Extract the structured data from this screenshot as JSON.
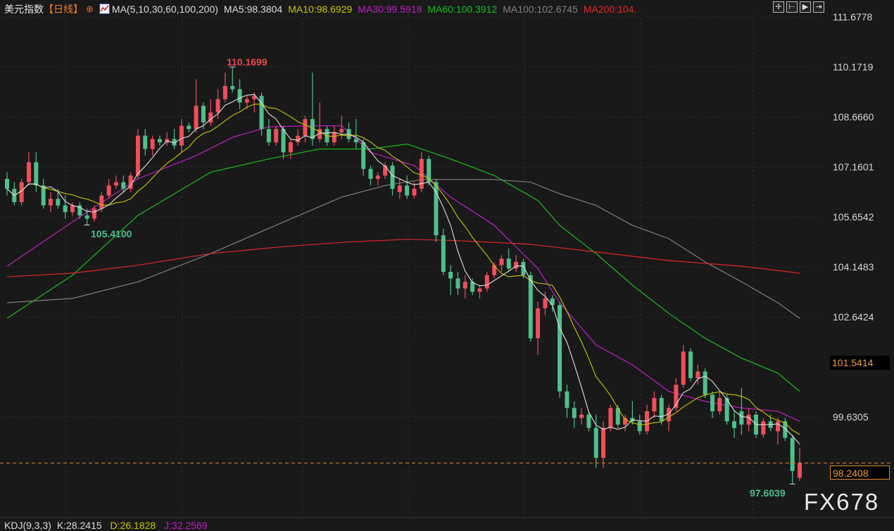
{
  "header": {
    "title": "美元指数",
    "period": "【日线】",
    "ma_label": "MA(5,10,30,60,100,200)",
    "ma5": "MA5:98.3804",
    "ma10": "MA10:98.6929",
    "ma30": "MA30:99.5918",
    "ma60": "MA60:100.3912",
    "ma100": "MA100:102.6745",
    "ma200": "MA200:104."
  },
  "toolbar": {
    "icons": [
      "crosshair-icon",
      "zoom-fit-icon",
      "play-icon",
      "next-icon"
    ]
  },
  "indicator": {
    "name": "KDJ(9,3,3)",
    "k": "K:28.2415",
    "d": "D:26.1828",
    "j": "J:32.2569"
  },
  "watermark": "FX678",
  "colors": {
    "up": "#f04e5a",
    "down": "#4fbf8b",
    "ma5": "#e0e0e0",
    "ma10": "#c8c800",
    "ma30": "#c020c8",
    "ma60": "#18c018",
    "ma100": "#808080",
    "ma200": "#e02828",
    "accent": "#e08a1e"
  },
  "chart_data": {
    "type": "candlestick",
    "title": "美元指数",
    "y_ticks": [
      "111.6778",
      "110.1719",
      "108.6660",
      "107.1601",
      "105.6542",
      "104.1483",
      "102.6424",
      "99.6305"
    ],
    "ylim": [
      97.2,
      111.8
    ],
    "grid": true,
    "highlight_price": "101.5414",
    "last_price": "98.2408",
    "annotations": {
      "high": "110.1699",
      "low_left": "105.4100",
      "low_right": "97.6039"
    },
    "ohlc": [
      [
        106.8,
        107.0,
        106.3,
        106.5
      ],
      [
        106.5,
        106.7,
        106.0,
        106.1
      ],
      [
        106.1,
        106.8,
        106.0,
        106.7
      ],
      [
        106.7,
        107.6,
        106.6,
        107.3
      ],
      [
        107.3,
        107.6,
        106.4,
        106.6
      ],
      [
        106.6,
        106.8,
        105.9,
        106.0
      ],
      [
        106.0,
        106.4,
        105.8,
        106.2
      ],
      [
        106.2,
        106.5,
        105.9,
        106.0
      ],
      [
        106.0,
        106.3,
        105.6,
        105.8
      ],
      [
        105.8,
        106.1,
        105.7,
        106.0
      ],
      [
        106.0,
        106.1,
        105.6,
        105.7
      ],
      [
        105.7,
        105.9,
        105.41,
        105.6
      ],
      [
        105.6,
        106.0,
        105.5,
        105.9
      ],
      [
        105.9,
        106.4,
        105.8,
        106.3
      ],
      [
        106.3,
        106.8,
        106.2,
        106.6
      ],
      [
        106.6,
        106.9,
        106.5,
        106.7
      ],
      [
        106.7,
        106.9,
        106.4,
        106.5
      ],
      [
        106.5,
        107.0,
        106.4,
        106.9
      ],
      [
        106.9,
        108.3,
        106.8,
        108.1
      ],
      [
        108.1,
        108.3,
        107.5,
        107.7
      ],
      [
        107.7,
        108.1,
        107.5,
        108.0
      ],
      [
        108.0,
        108.1,
        107.8,
        107.9
      ],
      [
        107.9,
        108.2,
        107.8,
        108.0
      ],
      [
        108.0,
        108.3,
        107.7,
        107.8
      ],
      [
        107.8,
        108.6,
        107.6,
        108.4
      ],
      [
        108.4,
        108.5,
        108.2,
        108.3
      ],
      [
        108.3,
        109.8,
        108.2,
        109.0
      ],
      [
        109.0,
        109.1,
        108.3,
        108.5
      ],
      [
        108.5,
        109.2,
        108.4,
        108.8
      ],
      [
        108.8,
        109.5,
        108.6,
        109.2
      ],
      [
        109.2,
        110.0,
        109.1,
        109.6
      ],
      [
        109.6,
        110.17,
        109.4,
        109.5
      ],
      [
        109.5,
        109.8,
        108.9,
        109.1
      ],
      [
        109.1,
        109.3,
        108.9,
        109.2
      ],
      [
        109.2,
        109.4,
        108.8,
        109.3
      ],
      [
        109.3,
        109.4,
        108.1,
        108.3
      ],
      [
        108.3,
        108.6,
        107.8,
        107.9
      ],
      [
        107.9,
        108.4,
        107.8,
        108.3
      ],
      [
        108.3,
        108.4,
        107.4,
        107.6
      ],
      [
        107.6,
        108.0,
        107.4,
        107.9
      ],
      [
        107.9,
        108.3,
        107.8,
        108.1
      ],
      [
        108.1,
        108.7,
        107.9,
        108.6
      ],
      [
        108.6,
        110.0,
        107.8,
        108.0
      ],
      [
        108.0,
        109.1,
        107.9,
        108.3
      ],
      [
        108.3,
        108.4,
        107.8,
        107.9
      ],
      [
        107.9,
        108.4,
        107.8,
        108.2
      ],
      [
        108.2,
        108.7,
        108.0,
        108.3
      ],
      [
        108.3,
        108.5,
        107.9,
        108.0
      ],
      [
        108.0,
        108.6,
        107.7,
        107.9
      ],
      [
        107.9,
        108.0,
        106.9,
        107.1
      ],
      [
        107.1,
        107.2,
        106.6,
        106.8
      ],
      [
        106.8,
        107.0,
        106.6,
        106.9
      ],
      [
        106.9,
        107.3,
        106.8,
        107.2
      ],
      [
        107.2,
        107.3,
        106.3,
        106.5
      ],
      [
        106.4,
        106.8,
        106.2,
        106.6
      ],
      [
        106.6,
        106.9,
        106.2,
        106.3
      ],
      [
        106.3,
        106.7,
        106.2,
        106.5
      ],
      [
        106.5,
        107.6,
        106.4,
        107.4
      ],
      [
        107.4,
        107.5,
        106.6,
        106.7
      ],
      [
        106.7,
        106.8,
        104.9,
        105.1
      ],
      [
        105.1,
        105.3,
        103.9,
        104.0
      ],
      [
        104.0,
        104.2,
        103.3,
        103.8
      ],
      [
        103.8,
        104.0,
        103.3,
        103.5
      ],
      [
        103.5,
        103.9,
        103.2,
        103.7
      ],
      [
        103.7,
        103.8,
        103.3,
        103.4
      ],
      [
        103.4,
        103.6,
        103.2,
        103.5
      ],
      [
        103.5,
        104.0,
        103.4,
        103.9
      ],
      [
        103.9,
        104.3,
        103.8,
        104.2
      ],
      [
        104.2,
        104.5,
        104.0,
        104.4
      ],
      [
        104.4,
        104.7,
        104.0,
        104.1
      ],
      [
        104.1,
        104.5,
        104.0,
        104.3
      ],
      [
        104.3,
        104.4,
        103.8,
        103.9
      ],
      [
        103.9,
        104.0,
        101.9,
        102.0
      ],
      [
        102.0,
        103.1,
        101.5,
        102.9
      ],
      [
        102.9,
        103.4,
        102.7,
        103.2
      ],
      [
        103.2,
        103.3,
        102.8,
        103.0
      ],
      [
        103.0,
        103.1,
        100.2,
        100.4
      ],
      [
        100.4,
        100.6,
        99.6,
        99.9
      ],
      [
        99.9,
        100.1,
        99.3,
        99.6
      ],
      [
        99.6,
        99.9,
        99.4,
        99.7
      ],
      [
        99.7,
        99.8,
        99.2,
        99.3
      ],
      [
        99.3,
        99.7,
        98.1,
        98.4
      ],
      [
        98.4,
        99.5,
        98.1,
        99.3
      ],
      [
        99.3,
        100.0,
        99.2,
        99.9
      ],
      [
        99.9,
        100.0,
        99.3,
        99.4
      ],
      [
        99.4,
        99.7,
        99.2,
        99.6
      ],
      [
        99.6,
        100.1,
        99.4,
        99.5
      ],
      [
        99.5,
        99.7,
        99.1,
        99.2
      ],
      [
        99.2,
        100.0,
        99.1,
        99.8
      ],
      [
        99.8,
        100.4,
        99.6,
        100.2
      ],
      [
        100.2,
        100.3,
        99.4,
        99.5
      ],
      [
        99.5,
        100.0,
        99.2,
        99.9
      ],
      [
        99.9,
        100.8,
        99.8,
        100.6
      ],
      [
        100.6,
        101.8,
        100.5,
        101.6
      ],
      [
        101.6,
        101.7,
        100.7,
        100.8
      ],
      [
        100.8,
        101.2,
        100.6,
        101.0
      ],
      [
        101.0,
        101.1,
        100.2,
        100.3
      ],
      [
        100.3,
        100.4,
        99.6,
        99.8
      ],
      [
        99.8,
        100.4,
        99.7,
        100.2
      ],
      [
        100.2,
        100.3,
        99.4,
        99.5
      ],
      [
        99.5,
        99.8,
        99.0,
        99.3
      ],
      [
        99.8,
        100.5,
        99.1,
        99.4
      ],
      [
        99.4,
        99.9,
        99.2,
        99.7
      ],
      [
        99.7,
        99.8,
        99.0,
        99.1
      ],
      [
        99.1,
        99.6,
        99.0,
        99.5
      ],
      [
        99.5,
        99.7,
        99.2,
        99.3
      ],
      [
        99.2,
        99.6,
        98.8,
        99.5
      ],
      [
        99.5,
        99.6,
        98.9,
        99.0
      ],
      [
        99.0,
        99.1,
        97.61,
        98.0
      ],
      [
        97.8,
        98.7,
        97.7,
        98.24
      ]
    ],
    "ma_series": [
      {
        "name": "MA30",
        "points": [
          [
            0,
            104.17
          ],
          [
            11,
            105.8
          ],
          [
            18,
            106.8
          ],
          [
            26,
            107.5
          ],
          [
            31,
            108.05
          ],
          [
            36,
            108.37
          ],
          [
            43,
            108.4
          ],
          [
            46,
            108.4
          ],
          [
            50,
            107.6
          ],
          [
            56,
            107.2
          ],
          [
            61,
            106.25
          ],
          [
            67,
            105.4
          ],
          [
            73,
            104.1
          ],
          [
            76,
            103.07
          ],
          [
            81,
            101.8
          ],
          [
            86,
            101.2
          ],
          [
            91,
            100.4
          ],
          [
            96,
            100.1
          ],
          [
            101,
            99.9
          ],
          [
            106,
            99.8
          ],
          [
            109,
            99.5
          ]
        ]
      },
      {
        "name": "MA60",
        "points": [
          [
            0,
            102.6
          ],
          [
            9,
            103.9
          ],
          [
            18,
            105.7
          ],
          [
            28,
            107.0
          ],
          [
            36,
            107.4
          ],
          [
            43,
            107.7
          ],
          [
            50,
            107.7
          ],
          [
            55,
            107.85
          ],
          [
            61,
            107.4
          ],
          [
            67,
            106.9
          ],
          [
            73,
            106.15
          ],
          [
            76,
            105.4
          ],
          [
            81,
            104.55
          ],
          [
            86,
            103.6
          ],
          [
            91,
            102.75
          ],
          [
            96,
            102.0
          ],
          [
            101,
            101.4
          ],
          [
            106,
            100.95
          ],
          [
            109,
            100.4
          ]
        ]
      },
      {
        "name": "MA100",
        "points": [
          [
            0,
            103.07
          ],
          [
            9,
            103.2
          ],
          [
            18,
            103.7
          ],
          [
            28,
            104.55
          ],
          [
            38,
            105.5
          ],
          [
            46,
            106.25
          ],
          [
            52,
            106.6
          ],
          [
            57,
            106.78
          ],
          [
            67,
            106.78
          ],
          [
            72,
            106.7
          ],
          [
            76,
            106.35
          ],
          [
            81,
            106.0
          ],
          [
            86,
            105.4
          ],
          [
            91,
            105.0
          ],
          [
            96,
            104.3
          ],
          [
            101,
            103.7
          ],
          [
            106,
            103.07
          ],
          [
            109,
            102.6
          ]
        ]
      },
      {
        "name": "MA200",
        "points": [
          [
            0,
            103.85
          ],
          [
            9,
            103.96
          ],
          [
            18,
            104.2
          ],
          [
            28,
            104.55
          ],
          [
            38,
            104.76
          ],
          [
            47,
            104.9
          ],
          [
            55,
            104.98
          ],
          [
            62,
            104.94
          ],
          [
            72,
            104.83
          ],
          [
            81,
            104.6
          ],
          [
            91,
            104.34
          ],
          [
            101,
            104.17
          ],
          [
            109,
            103.96
          ]
        ]
      }
    ]
  }
}
